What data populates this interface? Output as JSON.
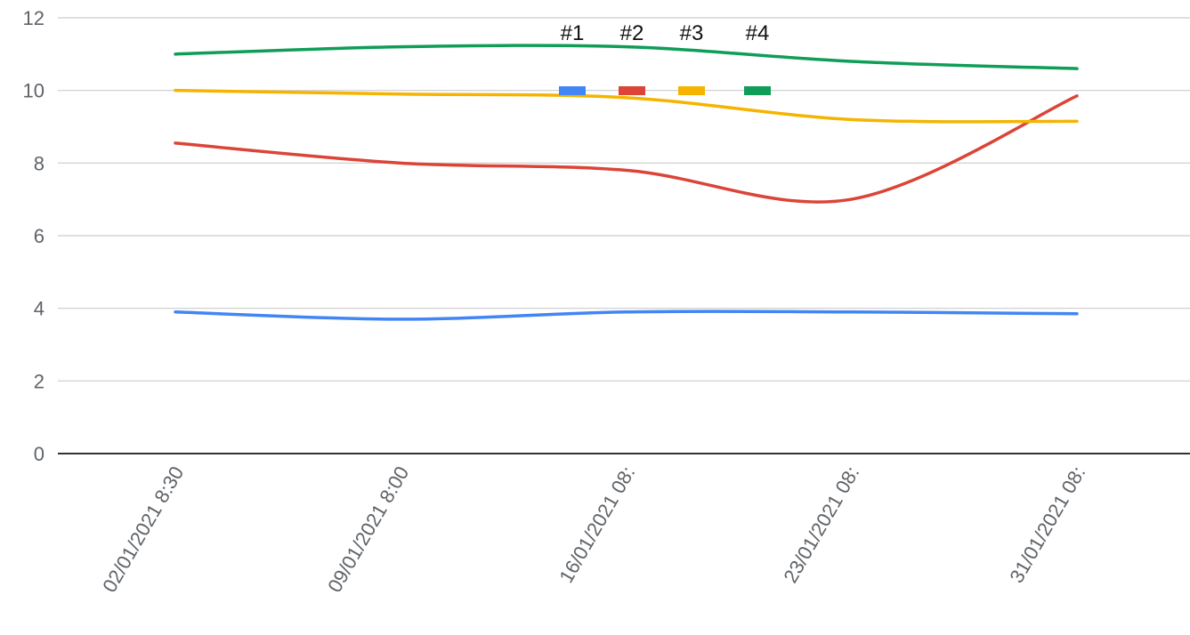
{
  "chart_data": {
    "type": "line",
    "title": "",
    "xlabel": "",
    "ylabel": "",
    "categories": [
      "02/01/2021 8:30",
      "09/01/2021 8:00",
      "16/01/2021 08:",
      "23/01/2021 08:",
      "31/01/2021 08:"
    ],
    "ylim": [
      0,
      12
    ],
    "yticks": [
      "0",
      "2",
      "4",
      "6",
      "8",
      "10",
      "12"
    ],
    "grid": true,
    "smooth": true,
    "legend_position": "top",
    "series": [
      {
        "name": "#1",
        "color": "#4285f4",
        "values": [
          3.9,
          3.7,
          3.9,
          3.9,
          3.85
        ]
      },
      {
        "name": "#2",
        "color": "#db4437",
        "values": [
          8.55,
          8.0,
          7.8,
          7.0,
          9.85
        ]
      },
      {
        "name": "#3",
        "color": "#f4b400",
        "values": [
          10.0,
          9.9,
          9.8,
          9.2,
          9.15
        ]
      },
      {
        "name": "#4",
        "color": "#0f9d58",
        "values": [
          11.0,
          11.2,
          11.2,
          10.8,
          10.6
        ]
      }
    ]
  }
}
